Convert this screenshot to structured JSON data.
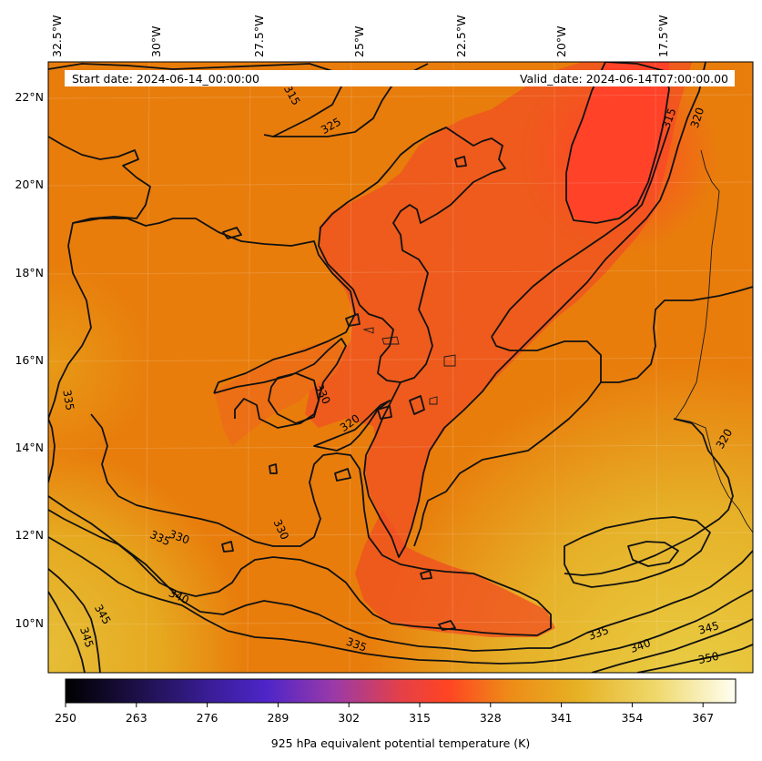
{
  "banner": {
    "start_date": "Start date: 2024-06-14_00:00:00",
    "valid_date": "Valid_date: 2024-06-14T07:00:00.00"
  },
  "map": {
    "lon_labels": [
      "32.5°W",
      "30°W",
      "27.5°W",
      "25°W",
      "22.5°W",
      "20°W",
      "17.5°W"
    ],
    "lat_labels": [
      "22°N",
      "20°N",
      "18°N",
      "16°N",
      "14°N",
      "12°N",
      "10°N"
    ]
  },
  "contour_labels": [
    "315",
    "320",
    "325",
    "315",
    "320",
    "330",
    "320",
    "335",
    "335",
    "330",
    "330",
    "335",
    "340",
    "345",
    "345",
    "335",
    "335",
    "340",
    "345",
    "350"
  ],
  "colorbar": {
    "ticks": [
      "250",
      "263",
      "276",
      "289",
      "302",
      "315",
      "328",
      "341",
      "354",
      "367"
    ],
    "label": "925 hPa equivalent potential temperature (K)",
    "vmin": 250,
    "vmax": 373,
    "colormap": [
      "#000000",
      "#2a1458",
      "#4a22b8",
      "#8a38b0",
      "#c84060",
      "#ff4422",
      "#ee8818",
      "#e6b020",
      "#eed860",
      "#fffff0"
    ]
  },
  "colors": {
    "field_low": "#ff4422",
    "field_mid": "#e87d0c",
    "field_high": "#e6c53a"
  }
}
